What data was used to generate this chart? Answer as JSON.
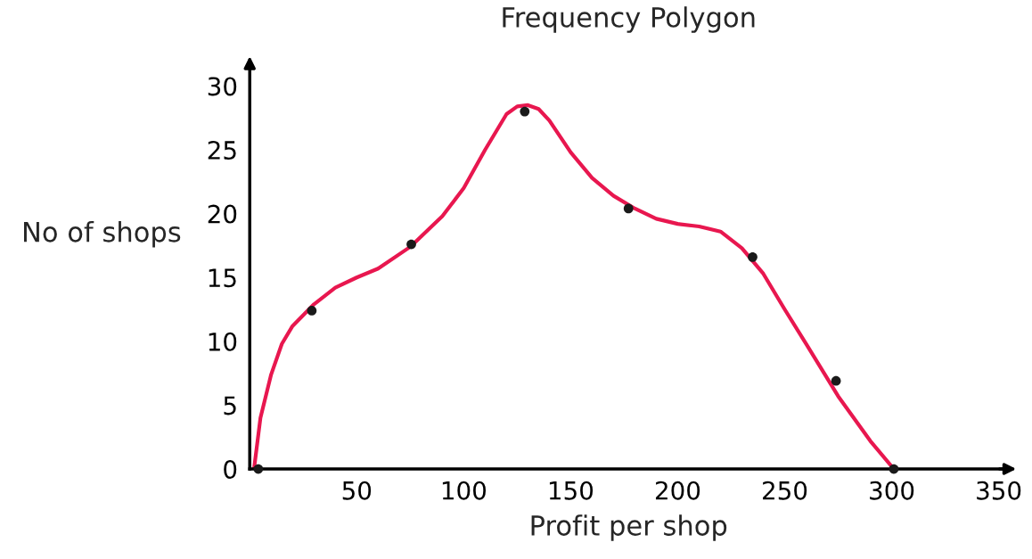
{
  "chart_data": {
    "type": "line",
    "title": "Frequency Polygon",
    "xlabel": "Profit per shop",
    "ylabel": "No of shops",
    "xlim": [
      0,
      354
    ],
    "ylim": [
      0,
      31.7
    ],
    "xticks": [
      50,
      100,
      150,
      200,
      250,
      300,
      350
    ],
    "yticks": [
      0,
      5,
      10,
      15,
      20,
      25,
      30
    ],
    "grid": false,
    "legend": false,
    "series": [
      {
        "color": "#e8174f",
        "marker": "none",
        "line_style": "solid",
        "x": [
          2,
          5,
          10,
          15,
          20,
          30,
          40,
          50,
          60,
          75,
          90,
          100,
          110,
          120,
          125,
          130,
          135,
          140,
          150,
          160,
          170,
          180,
          190,
          200,
          210,
          220,
          230,
          240,
          250,
          260,
          275,
          290,
          301
        ],
        "values": [
          0,
          4,
          7.4,
          9.8,
          11.2,
          12.9,
          14.2,
          15,
          15.7,
          17.4,
          19.8,
          22,
          25,
          27.8,
          28.4,
          28.5,
          28.2,
          27.3,
          24.8,
          22.8,
          21.4,
          20.4,
          19.6,
          19.2,
          19,
          18.6,
          17.3,
          15.3,
          12.5,
          9.8,
          5.7,
          2.2,
          0
        ]
      },
      {
        "type": "scatter",
        "color": "#1a1a1a",
        "marker": "circle",
        "x": [
          4,
          29,
          75.5,
          128.5,
          177,
          235,
          274,
          301
        ],
        "values": [
          0,
          12.4,
          17.6,
          28,
          20.4,
          16.6,
          6.9,
          0
        ]
      }
    ]
  }
}
